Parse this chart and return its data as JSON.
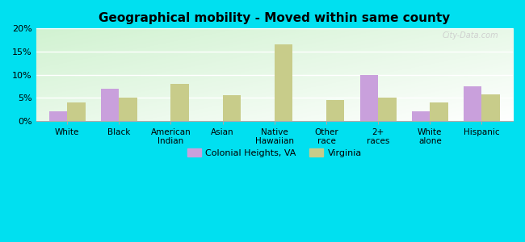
{
  "title": "Geographical mobility - Moved within same county",
  "categories": [
    "White",
    "Black",
    "American\nIndian",
    "Asian",
    "Native\nHawaiian",
    "Other\nrace",
    "2+\nraces",
    "White\nalone",
    "Hispanic"
  ],
  "colonial_heights": [
    2.0,
    7.0,
    0.0,
    0.0,
    0.0,
    0.0,
    10.0,
    2.0,
    7.5
  ],
  "virginia": [
    4.0,
    5.0,
    8.0,
    5.5,
    16.5,
    4.5,
    5.0,
    4.0,
    5.8
  ],
  "colonial_color": "#c9a0dc",
  "virginia_color": "#c8cc8a",
  "background_top": "#f5faf0",
  "background_bottom": "#d4edcc",
  "outer_background": "#00e0f0",
  "ylim": [
    0,
    20
  ],
  "yticks": [
    0,
    5,
    10,
    15,
    20
  ],
  "yticklabels": [
    "0%",
    "5%",
    "10%",
    "15%",
    "20%"
  ],
  "legend_colonial": "Colonial Heights, VA",
  "legend_virginia": "Virginia",
  "bar_width": 0.35,
  "watermark": "City-Data.com"
}
